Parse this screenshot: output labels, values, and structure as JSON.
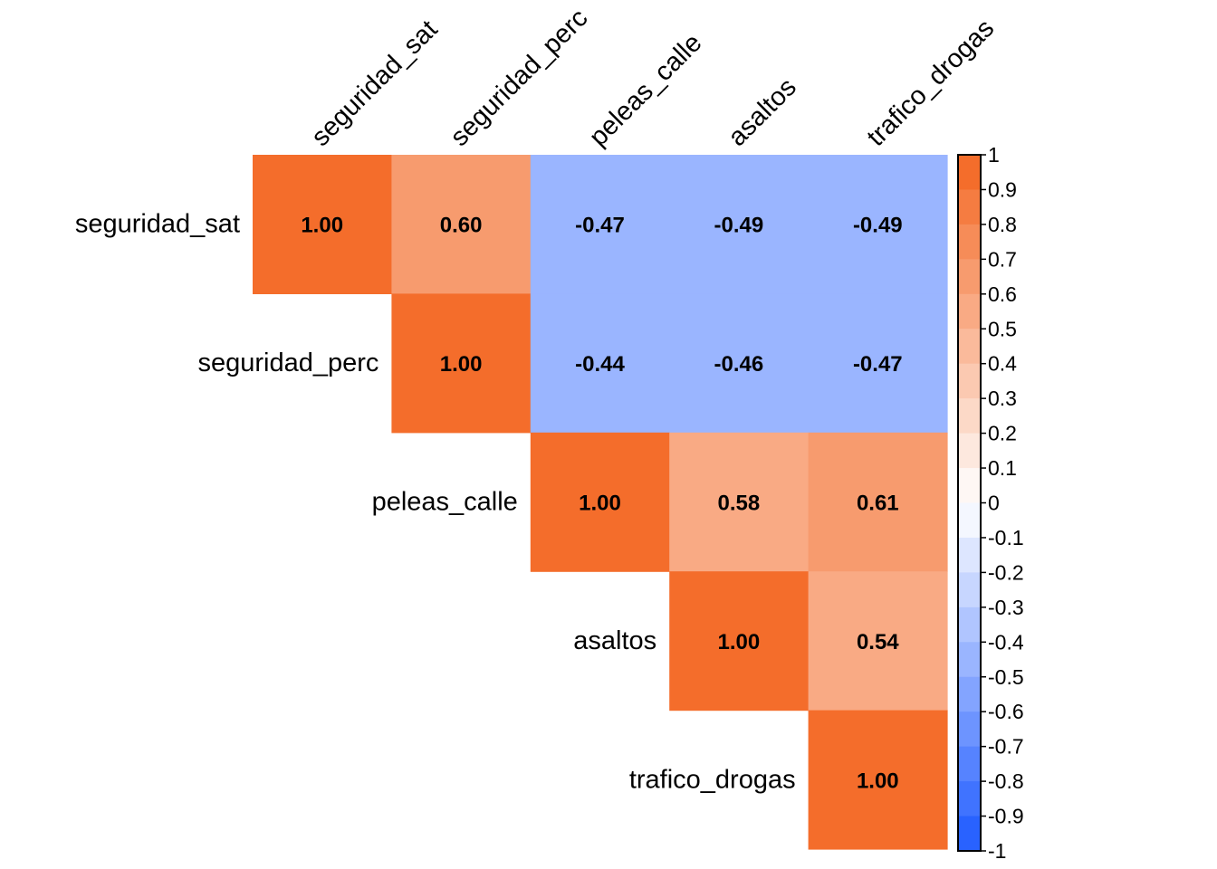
{
  "chart_data": {
    "type": "heatmap",
    "variables": [
      "seguridad_sat",
      "seguridad_perc",
      "peleas_calle",
      "asaltos",
      "trafico_drogas"
    ],
    "matrix": [
      [
        1.0,
        0.6,
        -0.47,
        -0.49,
        -0.49
      ],
      [
        null,
        1.0,
        -0.44,
        -0.46,
        -0.47
      ],
      [
        null,
        null,
        1.0,
        0.58,
        0.61
      ],
      [
        null,
        null,
        null,
        1.0,
        0.54
      ],
      [
        null,
        null,
        null,
        null,
        1.0
      ]
    ],
    "cell_labels": [
      [
        "1.00",
        "0.60",
        "-0.47",
        "-0.49",
        "-0.49"
      ],
      [
        null,
        "1.00",
        "-0.44",
        "-0.46",
        "-0.47"
      ],
      [
        null,
        null,
        "1.00",
        "0.58",
        "0.61"
      ],
      [
        null,
        null,
        null,
        "1.00",
        "0.54"
      ],
      [
        null,
        null,
        null,
        null,
        "1.00"
      ]
    ],
    "layout": "upper-triangle",
    "color_scale": {
      "min": -1,
      "max": 1,
      "low_color": "#2962FF",
      "mid_color": "#FFFFFF",
      "high_color": "#F46D2B",
      "steps": 20
    },
    "legend": {
      "position": "right",
      "ticks": [
        "1",
        "0.9",
        "0.8",
        "0.7",
        "0.6",
        "0.5",
        "0.4",
        "0.3",
        "0.2",
        "0.1",
        "0",
        "-0.1",
        "-0.2",
        "-0.3",
        "-0.4",
        "-0.5",
        "-0.6",
        "-0.7",
        "-0.8",
        "-0.9",
        "-1"
      ]
    }
  }
}
